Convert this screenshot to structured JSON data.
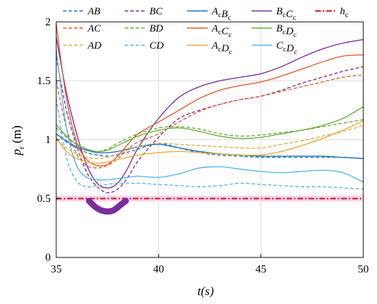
{
  "chart_data": {
    "type": "line",
    "xlabel": "t(s)",
    "ylabel": "p_r (m)",
    "xlim": [
      35,
      50
    ],
    "ylim": [
      0,
      2
    ],
    "xticks": [
      35,
      40,
      45,
      50
    ],
    "yticks": [
      0,
      0.5,
      1,
      1.5,
      2
    ],
    "xtick_labels": [
      "35",
      "40",
      "45",
      "50"
    ],
    "ytick_labels": [
      "0",
      "0.5",
      "1",
      "1.5",
      "2"
    ],
    "grid": true,
    "legend_position": "top",
    "series": [
      {
        "name": "AB",
        "label_main": [
          "AB"
        ],
        "label_sub": [
          ""
        ],
        "color": "#1f6fb5",
        "style": "dashed",
        "x": [
          35,
          35.5,
          36,
          36.5,
          37,
          37.5,
          38,
          39,
          40,
          41,
          42,
          43,
          44,
          45,
          46,
          47,
          48,
          49,
          50
        ],
        "y": [
          1.05,
          0.98,
          0.93,
          0.89,
          0.87,
          0.86,
          0.87,
          0.92,
          0.97,
          0.93,
          0.89,
          0.87,
          0.86,
          0.85,
          0.85,
          0.85,
          0.85,
          0.85,
          0.84
        ]
      },
      {
        "name": "BC",
        "label_main": [
          "BC"
        ],
        "label_sub": [
          ""
        ],
        "color": "#7b2d9c",
        "style": "dashed",
        "x": [
          35,
          35.5,
          36,
          36.5,
          37,
          37.5,
          38,
          38.5,
          39,
          40,
          41,
          42,
          43,
          44,
          45,
          46,
          47,
          48,
          49,
          50
        ],
        "y": [
          1.7,
          1.25,
          0.95,
          0.72,
          0.6,
          0.55,
          0.58,
          0.68,
          0.82,
          1.02,
          1.18,
          1.25,
          1.3,
          1.34,
          1.37,
          1.42,
          1.48,
          1.53,
          1.58,
          1.62
        ]
      },
      {
        "name": "AcBc",
        "label_main": [
          "A",
          "B"
        ],
        "label_sub": [
          "c",
          "c"
        ],
        "color": "#1f6fb5",
        "style": "solid",
        "x": [
          35,
          35.5,
          36,
          36.5,
          37,
          37.5,
          38,
          39,
          40,
          41,
          42,
          43,
          44,
          45,
          46,
          47,
          48,
          49,
          50
        ],
        "y": [
          1.05,
          0.99,
          0.94,
          0.91,
          0.89,
          0.89,
          0.9,
          0.94,
          0.96,
          0.93,
          0.9,
          0.88,
          0.87,
          0.86,
          0.86,
          0.86,
          0.86,
          0.85,
          0.84
        ]
      },
      {
        "name": "BcCc",
        "label_main": [
          "B",
          "C"
        ],
        "label_sub": [
          "c",
          "c"
        ],
        "color": "#7b2d9c",
        "style": "solid",
        "x": [
          35,
          35.5,
          36,
          36.5,
          37,
          37.5,
          38,
          38.5,
          39,
          40,
          41,
          42,
          43,
          44,
          45,
          46,
          47,
          48,
          49,
          50
        ],
        "y": [
          1.87,
          1.4,
          1.05,
          0.78,
          0.63,
          0.59,
          0.63,
          0.76,
          0.93,
          1.18,
          1.36,
          1.45,
          1.5,
          1.53,
          1.56,
          1.62,
          1.7,
          1.77,
          1.82,
          1.85
        ]
      },
      {
        "name": "hc",
        "label_main": [
          "h"
        ],
        "label_sub": [
          "c"
        ],
        "color": "#d9302c",
        "style": "dashdot",
        "x": [
          35,
          50
        ],
        "y": [
          0.5,
          0.5
        ]
      },
      {
        "name": "AC",
        "label_main": [
          "AC"
        ],
        "label_sub": [
          ""
        ],
        "color": "#e05a2b",
        "style": "dashed",
        "x": [
          35,
          35.5,
          36,
          36.5,
          37,
          37.5,
          38,
          38.5,
          39,
          40,
          41,
          42,
          43,
          44,
          45,
          46,
          47,
          48,
          49,
          50
        ],
        "y": [
          1.5,
          1.1,
          0.88,
          0.78,
          0.76,
          0.78,
          0.84,
          0.92,
          0.98,
          1.05,
          1.15,
          1.24,
          1.3,
          1.34,
          1.37,
          1.41,
          1.45,
          1.49,
          1.53,
          1.55
        ]
      },
      {
        "name": "BD",
        "label_main": [
          "BD"
        ],
        "label_sub": [
          ""
        ],
        "color": "#6aaa3a",
        "style": "dashed",
        "x": [
          35,
          35.5,
          36,
          36.5,
          37,
          37.5,
          38,
          39,
          40,
          41,
          42,
          43,
          44,
          45,
          46,
          47,
          48,
          49,
          50
        ],
        "y": [
          1.1,
          1.02,
          0.96,
          0.92,
          0.9,
          0.92,
          0.97,
          1.05,
          1.1,
          1.11,
          1.09,
          1.05,
          1.03,
          1.04,
          1.06,
          1.08,
          1.11,
          1.14,
          1.17
        ]
      },
      {
        "name": "AcCc",
        "label_main": [
          "A",
          "C"
        ],
        "label_sub": [
          "c",
          "c"
        ],
        "color": "#e05a2b",
        "style": "solid",
        "x": [
          35,
          35.5,
          36,
          36.5,
          37,
          37.5,
          38,
          38.5,
          39,
          40,
          41,
          42,
          43,
          44,
          45,
          46,
          47,
          48,
          49,
          50
        ],
        "y": [
          1.98,
          1.35,
          0.98,
          0.83,
          0.78,
          0.79,
          0.86,
          0.96,
          1.05,
          1.15,
          1.25,
          1.35,
          1.42,
          1.46,
          1.49,
          1.54,
          1.6,
          1.66,
          1.71,
          1.72
        ]
      },
      {
        "name": "BcDc",
        "label_main": [
          "B",
          "D"
        ],
        "label_sub": [
          "c",
          "c"
        ],
        "color": "#6aaa3a",
        "style": "solid",
        "x": [
          35,
          35.5,
          36,
          36.5,
          37,
          37.5,
          38,
          39,
          40,
          41,
          42,
          43,
          44,
          45,
          46,
          47,
          48,
          49,
          50
        ],
        "y": [
          1.13,
          1.03,
          0.96,
          0.92,
          0.9,
          0.91,
          0.95,
          1.03,
          1.08,
          1.1,
          1.07,
          1.03,
          1.01,
          1.02,
          1.05,
          1.08,
          1.12,
          1.18,
          1.28
        ]
      },
      {
        "name": "AD",
        "label_main": [
          "AD"
        ],
        "label_sub": [
          ""
        ],
        "color": "#e8a93a",
        "style": "dashed",
        "x": [
          35,
          35.5,
          36,
          36.5,
          37,
          37.5,
          38,
          39,
          40,
          41,
          42,
          43,
          44,
          45,
          46,
          47,
          48,
          49,
          50
        ],
        "y": [
          1.0,
          0.93,
          0.88,
          0.85,
          0.84,
          0.85,
          0.88,
          0.94,
          0.97,
          0.96,
          0.95,
          0.94,
          0.93,
          0.93,
          0.96,
          0.99,
          1.03,
          1.07,
          1.12
        ]
      },
      {
        "name": "CD",
        "label_main": [
          "CD"
        ],
        "label_sub": [
          ""
        ],
        "color": "#56b4e9",
        "style": "dashed",
        "x": [
          35,
          35.5,
          36,
          36.5,
          37,
          37.5,
          38,
          39,
          40,
          41,
          42,
          43,
          44,
          45,
          46,
          47,
          48,
          49,
          50
        ],
        "y": [
          1.35,
          0.85,
          0.65,
          0.6,
          0.61,
          0.62,
          0.63,
          0.63,
          0.62,
          0.61,
          0.6,
          0.61,
          0.63,
          0.62,
          0.61,
          0.6,
          0.6,
          0.59,
          0.58
        ]
      },
      {
        "name": "AcDc",
        "label_main": [
          "A",
          "D"
        ],
        "label_sub": [
          "c",
          "c"
        ],
        "color": "#e8a93a",
        "style": "solid",
        "x": [
          35,
          35.5,
          36,
          36.5,
          37,
          37.5,
          38,
          39,
          40,
          41,
          42,
          43,
          44,
          45,
          46,
          47,
          48,
          49,
          50
        ],
        "y": [
          1.02,
          0.9,
          0.84,
          0.81,
          0.8,
          0.81,
          0.83,
          0.87,
          0.89,
          0.9,
          0.89,
          0.88,
          0.87,
          0.87,
          0.9,
          0.95,
          1.01,
          1.08,
          1.16
        ]
      },
      {
        "name": "CcDc",
        "label_main": [
          "C",
          "D"
        ],
        "label_sub": [
          "c",
          "c"
        ],
        "color": "#56b4e9",
        "style": "solid",
        "x": [
          35,
          35.5,
          36,
          36.5,
          37,
          37.5,
          38,
          38.5,
          39,
          40,
          41,
          42,
          43,
          44,
          45,
          46,
          47,
          48,
          49,
          50
        ],
        "y": [
          1.77,
          1.1,
          0.78,
          0.68,
          0.66,
          0.66,
          0.67,
          0.68,
          0.69,
          0.68,
          0.71,
          0.76,
          0.77,
          0.75,
          0.73,
          0.72,
          0.73,
          0.74,
          0.72,
          0.64
        ]
      }
    ],
    "collision_marker": {
      "color": "#7b2d9c",
      "x": [
        36.6,
        36.9,
        37.2,
        37.5,
        37.8,
        38.1,
        38.4
      ],
      "y": [
        0.48,
        0.43,
        0.4,
        0.39,
        0.4,
        0.44,
        0.48
      ]
    }
  }
}
